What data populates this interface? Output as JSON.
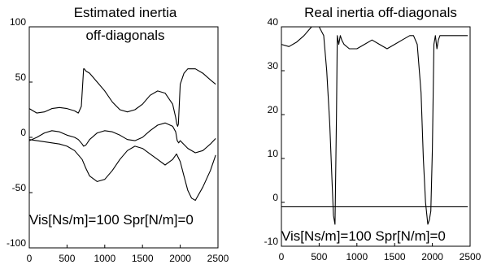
{
  "chart_data": [
    {
      "type": "line",
      "title_lines": [
        "Estimated inertia",
        "off-diagonals"
      ],
      "annotation": "Vis[Ns/m]=100 Spr[N/m]=0",
      "xlim": [
        0,
        2500
      ],
      "ylim": [
        -100,
        100
      ],
      "xticks": [
        "0",
        "500",
        "1000",
        "1500",
        "2000",
        "2500"
      ],
      "yticks": [
        "-100",
        "-50",
        "0",
        "50",
        "100"
      ],
      "xtick_values": [
        0,
        500,
        1000,
        1500,
        2000,
        2500
      ],
      "ytick_values": [
        -100,
        -50,
        0,
        50,
        100
      ],
      "grid": false,
      "series": [
        {
          "x": [
            0,
            100,
            200,
            300,
            400,
            500,
            600,
            650,
            690,
            720,
            730,
            750,
            800,
            900,
            1000,
            1100,
            1200,
            1300,
            1400,
            1500,
            1600,
            1700,
            1800,
            1900,
            1940,
            1955,
            1965,
            1975,
            2000,
            2050,
            2100,
            2200,
            2300,
            2400,
            2470
          ],
          "y": [
            26,
            22,
            23,
            26,
            27,
            26,
            24,
            22,
            28,
            62,
            62,
            60,
            58,
            50,
            42,
            32,
            25,
            23,
            25,
            30,
            38,
            42,
            40,
            30,
            18,
            12,
            10,
            12,
            48,
            58,
            62,
            62,
            58,
            52,
            48
          ]
        },
        {
          "x": [
            0,
            100,
            200,
            300,
            400,
            500,
            600,
            650,
            700,
            720,
            750,
            800,
            900,
            1000,
            1100,
            1200,
            1300,
            1400,
            1500,
            1600,
            1700,
            1800,
            1900,
            1940,
            1960,
            1980,
            2000,
            2100,
            2200,
            2300,
            2400,
            2470
          ],
          "y": [
            -3,
            0,
            4,
            6,
            5,
            2,
            0,
            -2,
            -6,
            -8,
            -7,
            -2,
            4,
            6,
            5,
            2,
            -2,
            -3,
            0,
            6,
            11,
            13,
            10,
            5,
            -3,
            -5,
            -3,
            -10,
            -14,
            -12,
            -6,
            -1
          ]
        },
        {
          "x": [
            0,
            100,
            200,
            300,
            400,
            500,
            600,
            700,
            750,
            800,
            900,
            1000,
            1100,
            1200,
            1300,
            1400,
            1500,
            1600,
            1700,
            1800,
            1900,
            1950,
            2000,
            2050,
            2100,
            2150,
            2200,
            2300,
            2400,
            2470
          ],
          "y": [
            -2,
            -3,
            -4,
            -5,
            -6,
            -8,
            -12,
            -20,
            -28,
            -35,
            -40,
            -38,
            -30,
            -20,
            -12,
            -8,
            -10,
            -15,
            -20,
            -25,
            -20,
            -15,
            -22,
            -35,
            -48,
            -55,
            -57,
            -45,
            -30,
            -16
          ]
        }
      ]
    },
    {
      "type": "line",
      "title_lines": [
        "Real inertia off-diagonals"
      ],
      "annotation": "Vis[Ns/m]=100 Spr[N/m]=0",
      "xlim": [
        0,
        2500
      ],
      "ylim": [
        -10,
        40
      ],
      "xticks": [
        "0",
        "500",
        "1000",
        "1500",
        "2000",
        "2500"
      ],
      "yticks": [
        "-10",
        "0",
        "10",
        "20",
        "30",
        "40"
      ],
      "xtick_values": [
        0,
        500,
        1000,
        1500,
        2000,
        2500
      ],
      "ytick_values": [
        -10,
        0,
        10,
        20,
        30,
        40
      ],
      "grid": false,
      "series": [
        {
          "x": [
            0,
            100,
            200,
            300,
            400,
            450,
            500,
            560,
            600,
            640,
            670,
            690,
            710,
            730,
            740,
            760,
            780,
            800,
            830,
            900,
            1000,
            1100,
            1200,
            1300,
            1400,
            1500,
            1600,
            1700,
            1750,
            1800,
            1850,
            1880,
            1910,
            1940,
            1960,
            1980,
            2000,
            2020,
            2040,
            2060,
            2080,
            2100,
            2200,
            2300,
            2400,
            2470
          ],
          "y": [
            36,
            35.5,
            36.5,
            38,
            40,
            40,
            40,
            38,
            30,
            18,
            5,
            -3,
            -5,
            20,
            38,
            36,
            38,
            37,
            36,
            35,
            35,
            36,
            37,
            36,
            35,
            36,
            37,
            38,
            38,
            36,
            25,
            10,
            0,
            -5,
            -4,
            -2,
            12,
            36,
            38,
            35,
            37,
            38,
            38,
            38,
            38,
            38
          ]
        },
        {
          "x": [
            0,
            2470
          ],
          "y": [
            -1,
            -1
          ]
        }
      ]
    }
  ]
}
